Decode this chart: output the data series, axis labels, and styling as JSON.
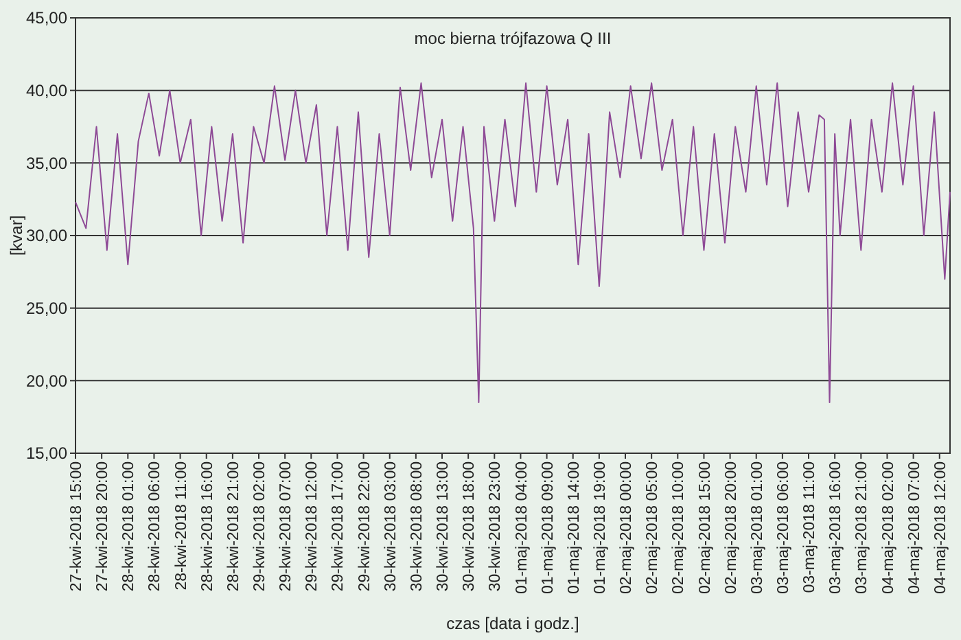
{
  "chart_data": {
    "type": "line",
    "title": "moc bierna trójfazowa Q III",
    "xlabel": "czas [data i godz.]",
    "ylabel": "[kvar]",
    "grid": "y",
    "line_style": "solid",
    "xlim": [
      "2018-04-27T15:00",
      "2018-05-04T14:00"
    ],
    "xticks": [
      {
        "value": "2018-04-27T15:00",
        "label": "27-kwi-2018 15:00"
      },
      {
        "value": "2018-04-27T20:00",
        "label": "27-kwi-2018 20:00"
      },
      {
        "value": "2018-04-28T01:00",
        "label": "28-kwi-2018 01:00"
      },
      {
        "value": "2018-04-28T06:00",
        "label": "28-kwi-2018 06:00"
      },
      {
        "value": "2018-04-28T11:00",
        "label": "28-kwi-2018 11:00"
      },
      {
        "value": "2018-04-28T16:00",
        "label": "28-kwi-2018 16:00"
      },
      {
        "value": "2018-04-28T21:00",
        "label": "28-kwi-2018 21:00"
      },
      {
        "value": "2018-04-29T02:00",
        "label": "29-kwi-2018 02:00"
      },
      {
        "value": "2018-04-29T07:00",
        "label": "29-kwi-2018 07:00"
      },
      {
        "value": "2018-04-29T12:00",
        "label": "29-kwi-2018 12:00"
      },
      {
        "value": "2018-04-29T17:00",
        "label": "29-kwi-2018 17:00"
      },
      {
        "value": "2018-04-29T22:00",
        "label": "29-kwi-2018 22:00"
      },
      {
        "value": "2018-04-30T03:00",
        "label": "30-kwi-2018 03:00"
      },
      {
        "value": "2018-04-30T08:00",
        "label": "30-kwi-2018 08:00"
      },
      {
        "value": "2018-04-30T13:00",
        "label": "30-kwi-2018 13:00"
      },
      {
        "value": "2018-04-30T18:00",
        "label": "30-kwi-2018 18:00"
      },
      {
        "value": "2018-04-30T23:00",
        "label": "30-kwi-2018 23:00"
      },
      {
        "value": "2018-05-01T04:00",
        "label": "01-maj-2018 04:00"
      },
      {
        "value": "2018-05-01T09:00",
        "label": "01-maj-2018 09:00"
      },
      {
        "value": "2018-05-01T14:00",
        "label": "01-maj-2018 14:00"
      },
      {
        "value": "2018-05-01T19:00",
        "label": "01-maj-2018 19:00"
      },
      {
        "value": "2018-05-02T00:00",
        "label": "02-maj-2018 00:00"
      },
      {
        "value": "2018-05-02T05:00",
        "label": "02-maj-2018 05:00"
      },
      {
        "value": "2018-05-02T10:00",
        "label": "02-maj-2018 10:00"
      },
      {
        "value": "2018-05-02T15:00",
        "label": "02-maj-2018 15:00"
      },
      {
        "value": "2018-05-02T20:00",
        "label": "02-maj-2018 20:00"
      },
      {
        "value": "2018-05-03T01:00",
        "label": "03-maj-2018 01:00"
      },
      {
        "value": "2018-05-03T06:00",
        "label": "03-maj-2018 06:00"
      },
      {
        "value": "2018-05-03T11:00",
        "label": "03-maj-2018 11:00"
      },
      {
        "value": "2018-05-03T16:00",
        "label": "03-maj-2018 16:00"
      },
      {
        "value": "2018-05-03T21:00",
        "label": "03-maj-2018 21:00"
      },
      {
        "value": "2018-05-04T02:00",
        "label": "04-maj-2018 02:00"
      },
      {
        "value": "2018-05-04T07:00",
        "label": "04-maj-2018 07:00"
      },
      {
        "value": "2018-05-04T12:00",
        "label": "04-maj-2018 12:00"
      }
    ],
    "ylim": [
      15,
      45
    ],
    "yticks": [
      {
        "value": 15,
        "label": "15,00"
      },
      {
        "value": 20,
        "label": "20,00"
      },
      {
        "value": 25,
        "label": "25,00"
      },
      {
        "value": 30,
        "label": "30,00"
      },
      {
        "value": 35,
        "label": "35,00"
      },
      {
        "value": 40,
        "label": "40,00"
      },
      {
        "value": 45,
        "label": "45,00"
      }
    ],
    "x": [
      "2018-04-27T15:00",
      "2018-04-27T17:00",
      "2018-04-27T19:00",
      "2018-04-27T21:00",
      "2018-04-27T23:00",
      "2018-04-28T01:00",
      "2018-04-28T03:00",
      "2018-04-28T05:00",
      "2018-04-28T07:00",
      "2018-04-28T09:00",
      "2018-04-28T11:00",
      "2018-04-28T13:00",
      "2018-04-28T15:00",
      "2018-04-28T17:00",
      "2018-04-28T19:00",
      "2018-04-28T21:00",
      "2018-04-28T23:00",
      "2018-04-29T01:00",
      "2018-04-29T03:00",
      "2018-04-29T05:00",
      "2018-04-29T07:00",
      "2018-04-29T09:00",
      "2018-04-29T11:00",
      "2018-04-29T13:00",
      "2018-04-29T15:00",
      "2018-04-29T17:00",
      "2018-04-29T19:00",
      "2018-04-29T21:00",
      "2018-04-29T23:00",
      "2018-04-30T01:00",
      "2018-04-30T03:00",
      "2018-04-30T05:00",
      "2018-04-30T07:00",
      "2018-04-30T09:00",
      "2018-04-30T11:00",
      "2018-04-30T13:00",
      "2018-04-30T15:00",
      "2018-04-30T17:00",
      "2018-04-30T19:00",
      "2018-04-30T20:00",
      "2018-04-30T21:00",
      "2018-04-30T23:00",
      "2018-05-01T01:00",
      "2018-05-01T03:00",
      "2018-05-01T05:00",
      "2018-05-01T07:00",
      "2018-05-01T09:00",
      "2018-05-01T11:00",
      "2018-05-01T13:00",
      "2018-05-01T15:00",
      "2018-05-01T17:00",
      "2018-05-01T19:00",
      "2018-05-01T21:00",
      "2018-05-01T23:00",
      "2018-05-02T01:00",
      "2018-05-02T03:00",
      "2018-05-02T05:00",
      "2018-05-02T07:00",
      "2018-05-02T09:00",
      "2018-05-02T11:00",
      "2018-05-02T13:00",
      "2018-05-02T15:00",
      "2018-05-02T17:00",
      "2018-05-02T19:00",
      "2018-05-02T21:00",
      "2018-05-02T23:00",
      "2018-05-03T01:00",
      "2018-05-03T03:00",
      "2018-05-03T05:00",
      "2018-05-03T07:00",
      "2018-05-03T09:00",
      "2018-05-03T11:00",
      "2018-05-03T13:00",
      "2018-05-03T14:00",
      "2018-05-03T15:00",
      "2018-05-03T16:00",
      "2018-05-03T17:00",
      "2018-05-03T19:00",
      "2018-05-03T21:00",
      "2018-05-03T23:00",
      "2018-05-04T01:00",
      "2018-05-04T03:00",
      "2018-05-04T05:00",
      "2018-05-04T07:00",
      "2018-05-04T09:00",
      "2018-05-04T11:00",
      "2018-05-04T13:00",
      "2018-05-04T14:00"
    ],
    "series": [
      {
        "color": "#8e4a96",
        "values": [
          32.3,
          30.5,
          37.5,
          29,
          37,
          28,
          36.5,
          39.8,
          35.5,
          40,
          35,
          38,
          30,
          37.5,
          31,
          37,
          29.5,
          37.5,
          35,
          40.3,
          35.2,
          40,
          35,
          39,
          30,
          37.5,
          29,
          38.5,
          28.5,
          37,
          30,
          40.2,
          34.5,
          40.5,
          34,
          38,
          31,
          37.5,
          30.5,
          18.5,
          37.5,
          31,
          38,
          32,
          40.5,
          33,
          40.3,
          33.5,
          38,
          28,
          37,
          26.5,
          38.5,
          34,
          40.3,
          35.3,
          40.5,
          34.5,
          38,
          30,
          37.5,
          29,
          37,
          29.5,
          37.5,
          33,
          40.3,
          33.5,
          40.5,
          32,
          38.5,
          33,
          38.3,
          38,
          18.5,
          37,
          30,
          38,
          29,
          38,
          33,
          40.5,
          33.5,
          40.3,
          30,
          38.5,
          27,
          33
        ]
      }
    ]
  }
}
